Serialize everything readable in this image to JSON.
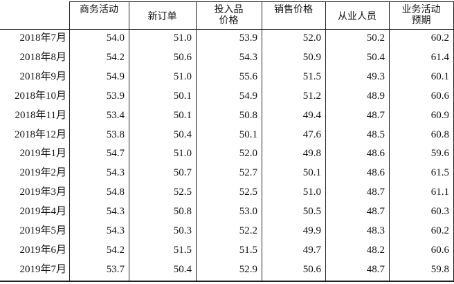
{
  "table": {
    "header": [
      [
        "商务活动"
      ],
      [
        "新订单"
      ],
      [
        "投入品",
        "价格"
      ],
      [
        "销售价格"
      ],
      [
        "从业人员"
      ],
      [
        "业务活动",
        "预期"
      ]
    ],
    "rows": [
      [
        "2018年7月",
        "54.0",
        "51.0",
        "53.9",
        "52.0",
        "50.2",
        "60.2"
      ],
      [
        "2018年8月",
        "54.2",
        "50.6",
        "54.3",
        "50.9",
        "50.4",
        "61.4"
      ],
      [
        "2018年9月",
        "54.9",
        "51.0",
        "55.6",
        "51.5",
        "49.3",
        "60.1"
      ],
      [
        "2018年10月",
        "53.9",
        "50.1",
        "54.9",
        "51.2",
        "48.9",
        "60.6"
      ],
      [
        "2018年11月",
        "53.4",
        "50.1",
        "50.8",
        "49.4",
        "48.7",
        "60.9"
      ],
      [
        "2018年12月",
        "53.8",
        "50.4",
        "50.1",
        "47.6",
        "48.5",
        "60.8"
      ],
      [
        "2019年1月",
        "54.7",
        "51.0",
        "52.0",
        "49.8",
        "48.6",
        "59.6"
      ],
      [
        "2019年2月",
        "54.3",
        "50.7",
        "52.7",
        "50.1",
        "48.6",
        "61.5"
      ],
      [
        "2019年3月",
        "54.8",
        "52.5",
        "52.5",
        "51.0",
        "48.7",
        "61.1"
      ],
      [
        "2019年4月",
        "54.3",
        "50.8",
        "53.0",
        "50.5",
        "48.7",
        "60.3"
      ],
      [
        "2019年5月",
        "54.3",
        "50.3",
        "52.2",
        "49.9",
        "48.3",
        "60.2"
      ],
      [
        "2019年6月",
        "54.2",
        "51.5",
        "51.5",
        "49.7",
        "48.2",
        "60.6"
      ],
      [
        "2019年7月",
        "53.7",
        "50.4",
        "52.9",
        "50.6",
        "48.7",
        "59.8"
      ]
    ]
  }
}
